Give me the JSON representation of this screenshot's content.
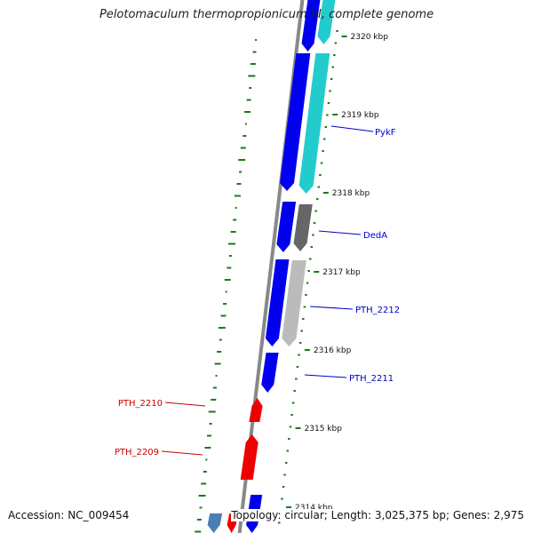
{
  "title": "Pelotomaculum thermopropionicum SI, complete genome",
  "footer": {
    "accession": "Accession: NC_009454",
    "topology": "Topology: circular; Length: 3,025,375 bp; Genes: 2,975"
  },
  "colors": {
    "backbone": "#888888",
    "gc_ticks": "#1a7a1a",
    "forward_gene": "#0000ee",
    "reverse_gene": "#ee0000",
    "cyan_gene": "#22cccc",
    "grey_gene": "#666666",
    "light_grey_gene": "#bbbbbb",
    "steel_gene": "#4a7fb5",
    "label_forward": "#0000cc",
    "label_reverse": "#cc0000"
  },
  "scale": {
    "tick_labels": [
      "2320 kbp",
      "2319 kbp",
      "2318 kbp",
      "2317 kbp",
      "2316 kbp",
      "2315 kbp",
      "2314 kbp"
    ]
  },
  "gene_labels": [
    {
      "text": "PykF",
      "strand": "forward"
    },
    {
      "text": "DedA",
      "strand": "forward"
    },
    {
      "text": "PTH_2212",
      "strand": "forward"
    },
    {
      "text": "PTH_2211",
      "strand": "forward"
    },
    {
      "text": "PTH_2210",
      "strand": "reverse"
    },
    {
      "text": "PTH_2209",
      "strand": "reverse"
    }
  ]
}
